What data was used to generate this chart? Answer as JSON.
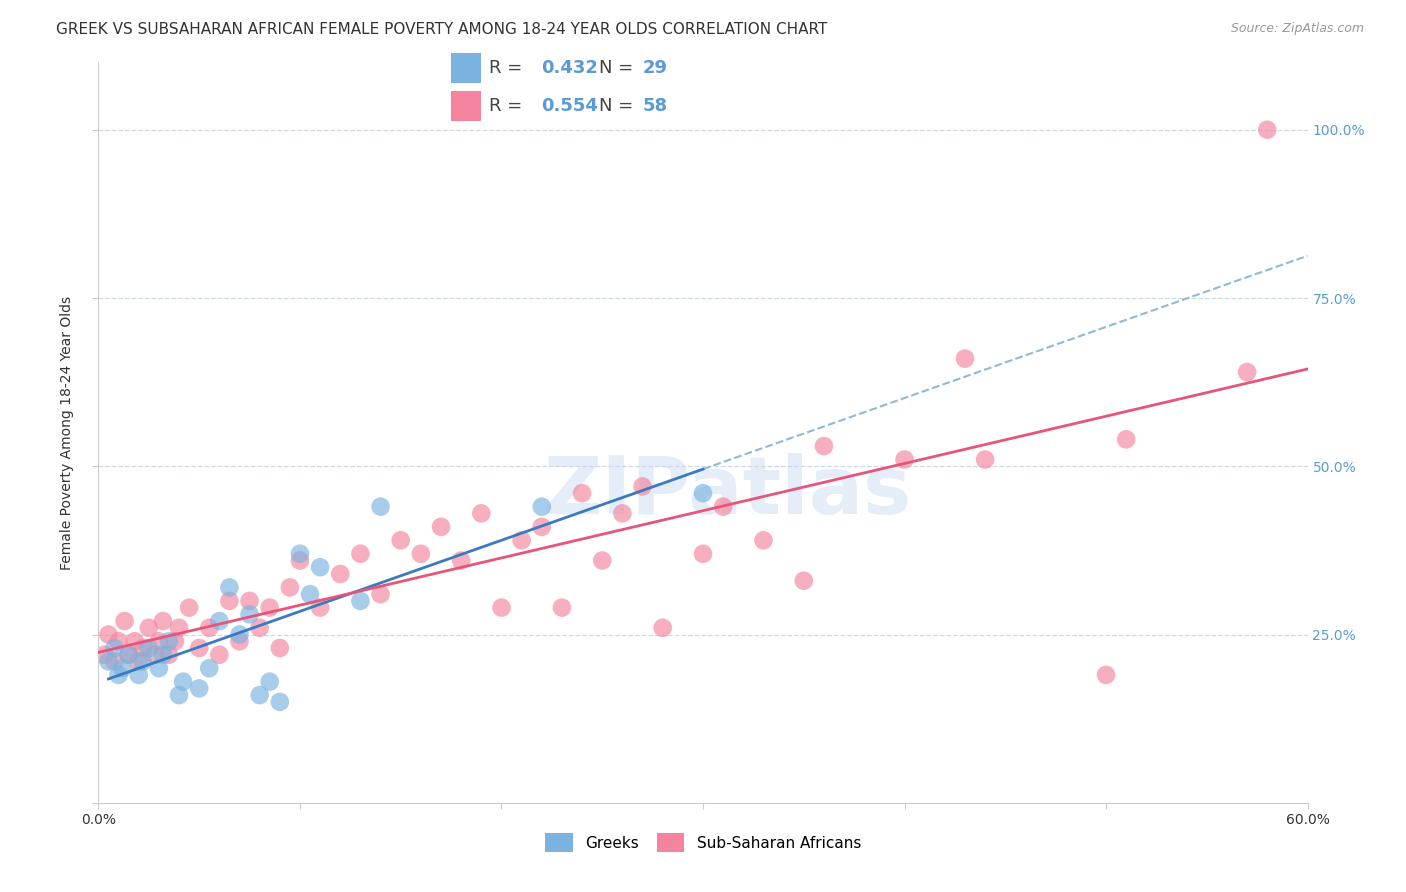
{
  "title": "GREEK VS SUBSAHARAN AFRICAN FEMALE POVERTY AMONG 18-24 YEAR OLDS CORRELATION CHART",
  "source": "Source: ZipAtlas.com",
  "ylabel": "Female Poverty Among 18-24 Year Olds",
  "xlim": [
    0.0,
    0.6
  ],
  "ylim": [
    0.0,
    1.1
  ],
  "x_ticks": [
    0.0,
    0.1,
    0.2,
    0.3,
    0.4,
    0.5,
    0.6
  ],
  "y_ticks": [
    0.0,
    0.25,
    0.5,
    0.75,
    1.0
  ],
  "y_tick_labels_right": [
    "",
    "25.0%",
    "50.0%",
    "75.0%",
    "100.0%"
  ],
  "greek_R": 0.432,
  "greek_N": 29,
  "subsaharan_R": 0.554,
  "subsaharan_N": 58,
  "greek_color": "#7ab3e0",
  "subsaharan_color": "#f4849e",
  "greek_line_color": "#3a7abf",
  "subsaharan_line_color": "#e8547a",
  "dashed_line_color": "#90b8d8",
  "watermark_text": "ZIPatlas",
  "greek_x": [
    0.005,
    0.008,
    0.01,
    0.012,
    0.015,
    0.02,
    0.022,
    0.025,
    0.03,
    0.032,
    0.035,
    0.04,
    0.042,
    0.05,
    0.055,
    0.06,
    0.065,
    0.07,
    0.075,
    0.08,
    0.085,
    0.09,
    0.1,
    0.105,
    0.11,
    0.13,
    0.14,
    0.22,
    0.3
  ],
  "greek_y": [
    0.21,
    0.23,
    0.19,
    0.2,
    0.22,
    0.19,
    0.21,
    0.23,
    0.2,
    0.22,
    0.24,
    0.16,
    0.18,
    0.17,
    0.2,
    0.27,
    0.32,
    0.25,
    0.28,
    0.16,
    0.18,
    0.15,
    0.37,
    0.31,
    0.35,
    0.3,
    0.44,
    0.44,
    0.46
  ],
  "subsaharan_x": [
    0.003,
    0.005,
    0.008,
    0.01,
    0.013,
    0.015,
    0.018,
    0.02,
    0.022,
    0.025,
    0.028,
    0.03,
    0.032,
    0.035,
    0.038,
    0.04,
    0.045,
    0.05,
    0.055,
    0.06,
    0.065,
    0.07,
    0.075,
    0.08,
    0.085,
    0.09,
    0.095,
    0.1,
    0.11,
    0.12,
    0.13,
    0.14,
    0.15,
    0.16,
    0.17,
    0.18,
    0.19,
    0.2,
    0.21,
    0.22,
    0.23,
    0.24,
    0.25,
    0.26,
    0.27,
    0.28,
    0.3,
    0.31,
    0.33,
    0.35,
    0.36,
    0.4,
    0.43,
    0.44,
    0.5,
    0.51,
    0.57,
    0.58
  ],
  "subsaharan_y": [
    0.22,
    0.25,
    0.21,
    0.24,
    0.27,
    0.22,
    0.24,
    0.21,
    0.23,
    0.26,
    0.22,
    0.24,
    0.27,
    0.22,
    0.24,
    0.26,
    0.29,
    0.23,
    0.26,
    0.22,
    0.3,
    0.24,
    0.3,
    0.26,
    0.29,
    0.23,
    0.32,
    0.36,
    0.29,
    0.34,
    0.37,
    0.31,
    0.39,
    0.37,
    0.41,
    0.36,
    0.43,
    0.29,
    0.39,
    0.41,
    0.29,
    0.46,
    0.36,
    0.43,
    0.47,
    0.26,
    0.37,
    0.44,
    0.39,
    0.33,
    0.53,
    0.51,
    0.66,
    0.51,
    0.19,
    0.54,
    0.64,
    1.0
  ],
  "background_color": "#ffffff",
  "grid_color": "#c8d4e8",
  "title_fontsize": 11,
  "axis_label_fontsize": 10,
  "tick_fontsize": 10,
  "right_tick_color": "#5b9bd5"
}
